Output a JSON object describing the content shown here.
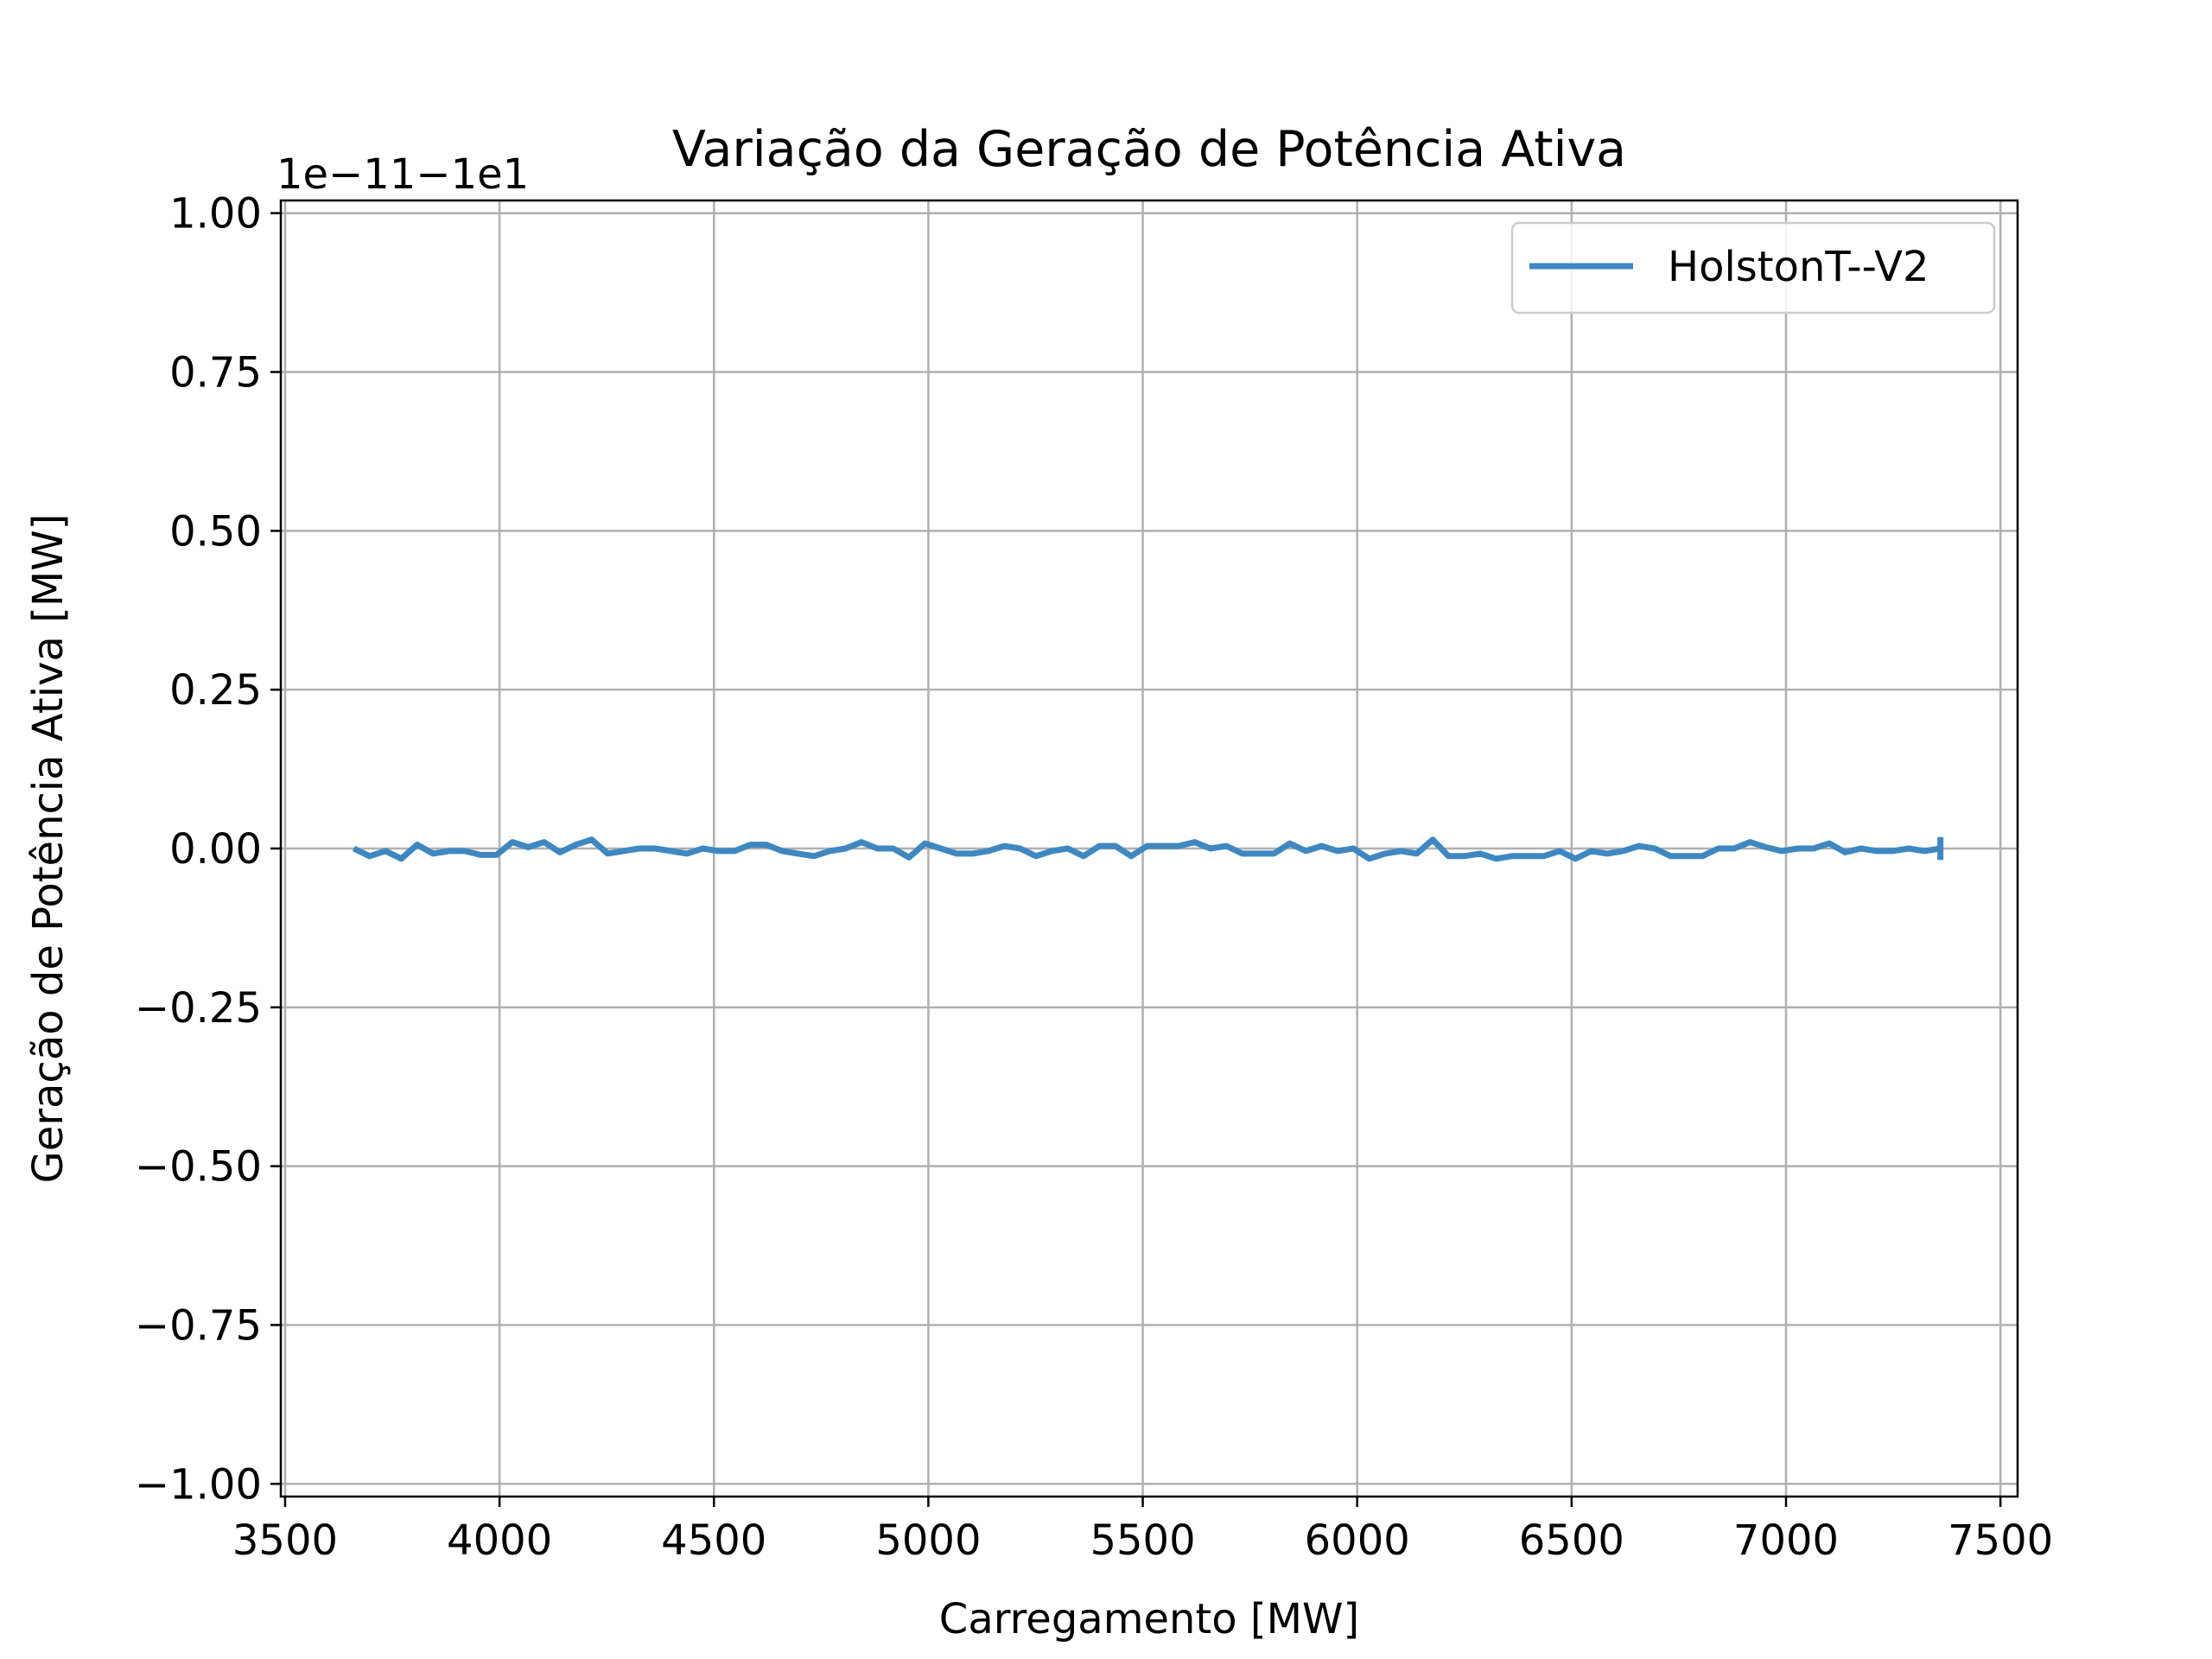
{
  "chart_data": {
    "type": "line",
    "title": "Variação da Geração de Potência Ativa",
    "xlabel": "Carregamento [MW]",
    "ylabel": "Geração de Potência Ativa [MW]",
    "offset_label": "1e−11−1e1",
    "xlim": [
      3490,
      7540
    ],
    "ylim": [
      -1.02,
      1.02
    ],
    "xticks": [
      3500,
      4000,
      4500,
      5000,
      5500,
      6000,
      6500,
      7000,
      7500
    ],
    "xtick_labels": [
      "3500",
      "4000",
      "4500",
      "5000",
      "5500",
      "6000",
      "6500",
      "7000",
      "7500"
    ],
    "yticks": [
      1.0,
      0.75,
      0.5,
      0.25,
      0.0,
      -0.25,
      -0.5,
      -0.75,
      -1.0
    ],
    "ytick_labels": [
      "1.00",
      "0.75",
      "0.50",
      "0.25",
      "0.00",
      "−0.25",
      "−0.50",
      "−0.75",
      "−1.00"
    ],
    "grid": true,
    "legend_position": "top-right",
    "series": [
      {
        "name": "HolstonT--V2",
        "color": "#3f87c1",
        "x": [
          3660,
          3697,
          3734,
          3771,
          3808,
          3845,
          3882,
          3919,
          3956,
          3993,
          4030,
          4067,
          4104,
          4141,
          4178,
          4215,
          4252,
          4289,
          4326,
          4363,
          4400,
          4437,
          4474,
          4511,
          4548,
          4585,
          4622,
          4659,
          4696,
          4733,
          4770,
          4807,
          4844,
          4881,
          4918,
          4955,
          4992,
          5029,
          5066,
          5103,
          5140,
          5177,
          5214,
          5251,
          5288,
          5325,
          5362,
          5399,
          5436,
          5473,
          5510,
          5547,
          5584,
          5621,
          5658,
          5695,
          5732,
          5769,
          5806,
          5843,
          5880,
          5917,
          5954,
          5991,
          6028,
          6065,
          6102,
          6139,
          6176,
          6213,
          6250,
          6287,
          6324,
          6361,
          6398,
          6435,
          6472,
          6509,
          6546,
          6583,
          6620,
          6657,
          6694,
          6731,
          6768,
          6805,
          6842,
          6879,
          6916,
          6953,
          6990,
          7027,
          7064,
          7101,
          7138,
          7175,
          7212,
          7249,
          7286,
          7323,
          7360
        ],
        "y": [
          0.0,
          -0.012,
          -0.004,
          -0.016,
          0.006,
          -0.008,
          -0.004,
          -0.004,
          -0.01,
          -0.01,
          0.01,
          0.002,
          0.01,
          -0.006,
          0.006,
          0.014,
          -0.008,
          -0.004,
          0.0,
          0.0,
          -0.004,
          -0.008,
          0.0,
          -0.004,
          -0.004,
          0.006,
          0.006,
          -0.004,
          -0.008,
          -0.012,
          -0.004,
          0.0,
          0.01,
          0.0,
          0.0,
          -0.014,
          0.008,
          0.0,
          -0.008,
          -0.008,
          -0.004,
          0.004,
          0.0,
          -0.012,
          -0.004,
          0.0,
          -0.012,
          0.004,
          0.004,
          -0.012,
          0.004,
          0.004,
          0.004,
          0.01,
          0.0,
          0.004,
          -0.008,
          -0.008,
          -0.008,
          0.008,
          -0.004,
          0.004,
          -0.004,
          0.0,
          -0.016,
          -0.008,
          -0.004,
          -0.008,
          0.014,
          -0.012,
          -0.012,
          -0.008,
          -0.016,
          -0.012,
          -0.012,
          -0.012,
          -0.004,
          -0.016,
          -0.004,
          -0.008,
          -0.004,
          0.004,
          0.0,
          -0.012,
          -0.012,
          -0.012,
          0.0,
          0.0,
          0.01,
          0.002,
          -0.004,
          0.0,
          0.0,
          0.008,
          -0.006,
          0.0,
          -0.004,
          -0.004,
          0.0,
          -0.004,
          0.0
        ]
      }
    ]
  }
}
